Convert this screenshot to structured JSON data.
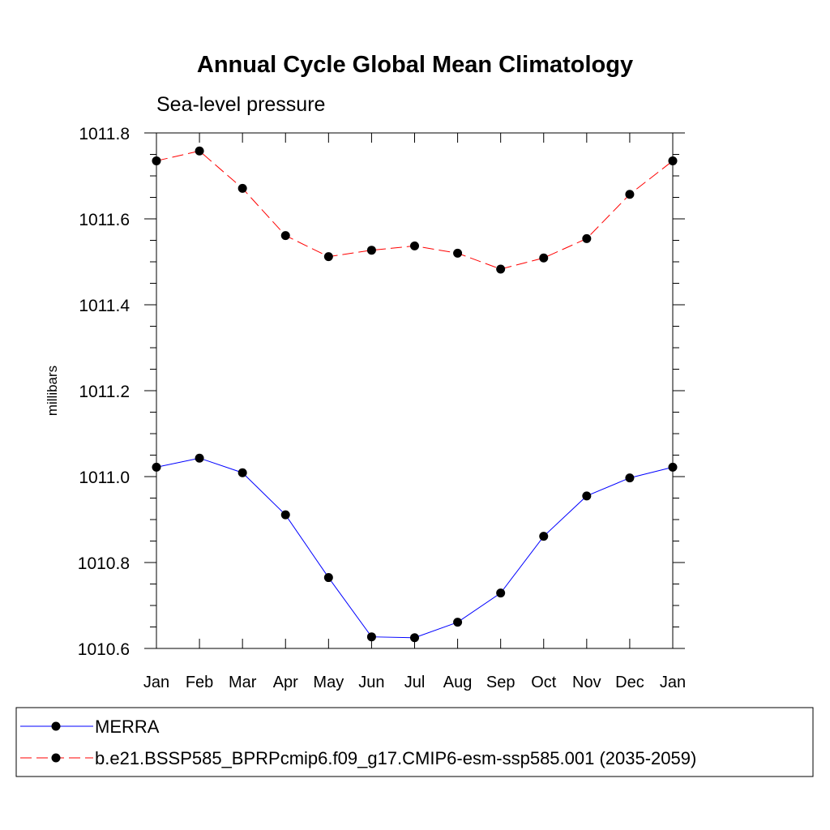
{
  "chart_data": {
    "type": "line",
    "title": "Annual Cycle Global Mean Climatology",
    "subtitle": "Sea-level pressure",
    "xlabel": "",
    "ylabel": "millibars",
    "categories": [
      "Jan",
      "Feb",
      "Mar",
      "Apr",
      "May",
      "Jun",
      "Jul",
      "Aug",
      "Sep",
      "Oct",
      "Nov",
      "Dec",
      "Jan"
    ],
    "ylim": [
      1010.6,
      1011.8
    ],
    "yticks": [
      "1010.6",
      "1010.8",
      "1011.0",
      "1011.2",
      "1011.4",
      "1011.6",
      "1011.8"
    ],
    "yminor_step": 0.05,
    "grid": false,
    "legend_position": "bottom",
    "series": [
      {
        "name": "MERRA",
        "color": "#0000ff",
        "line_style": "solid",
        "marker": "filled-circle",
        "values": [
          1011.022,
          1011.043,
          1011.009,
          1010.911,
          1010.765,
          1010.627,
          1010.625,
          1010.661,
          1010.729,
          1010.861,
          1010.955,
          1010.997,
          1011.022
        ]
      },
      {
        "name": "b.e21.BSSP585_BPRPcmip6.f09_g17.CMIP6-esm-ssp585.001 (2035-2059)",
        "color": "#ff0000",
        "line_style": "dashed",
        "marker": "filled-circle",
        "values": [
          1011.735,
          1011.758,
          1011.671,
          1011.561,
          1011.512,
          1011.527,
          1011.537,
          1011.52,
          1011.483,
          1011.509,
          1011.554,
          1011.657,
          1011.735
        ]
      }
    ]
  }
}
